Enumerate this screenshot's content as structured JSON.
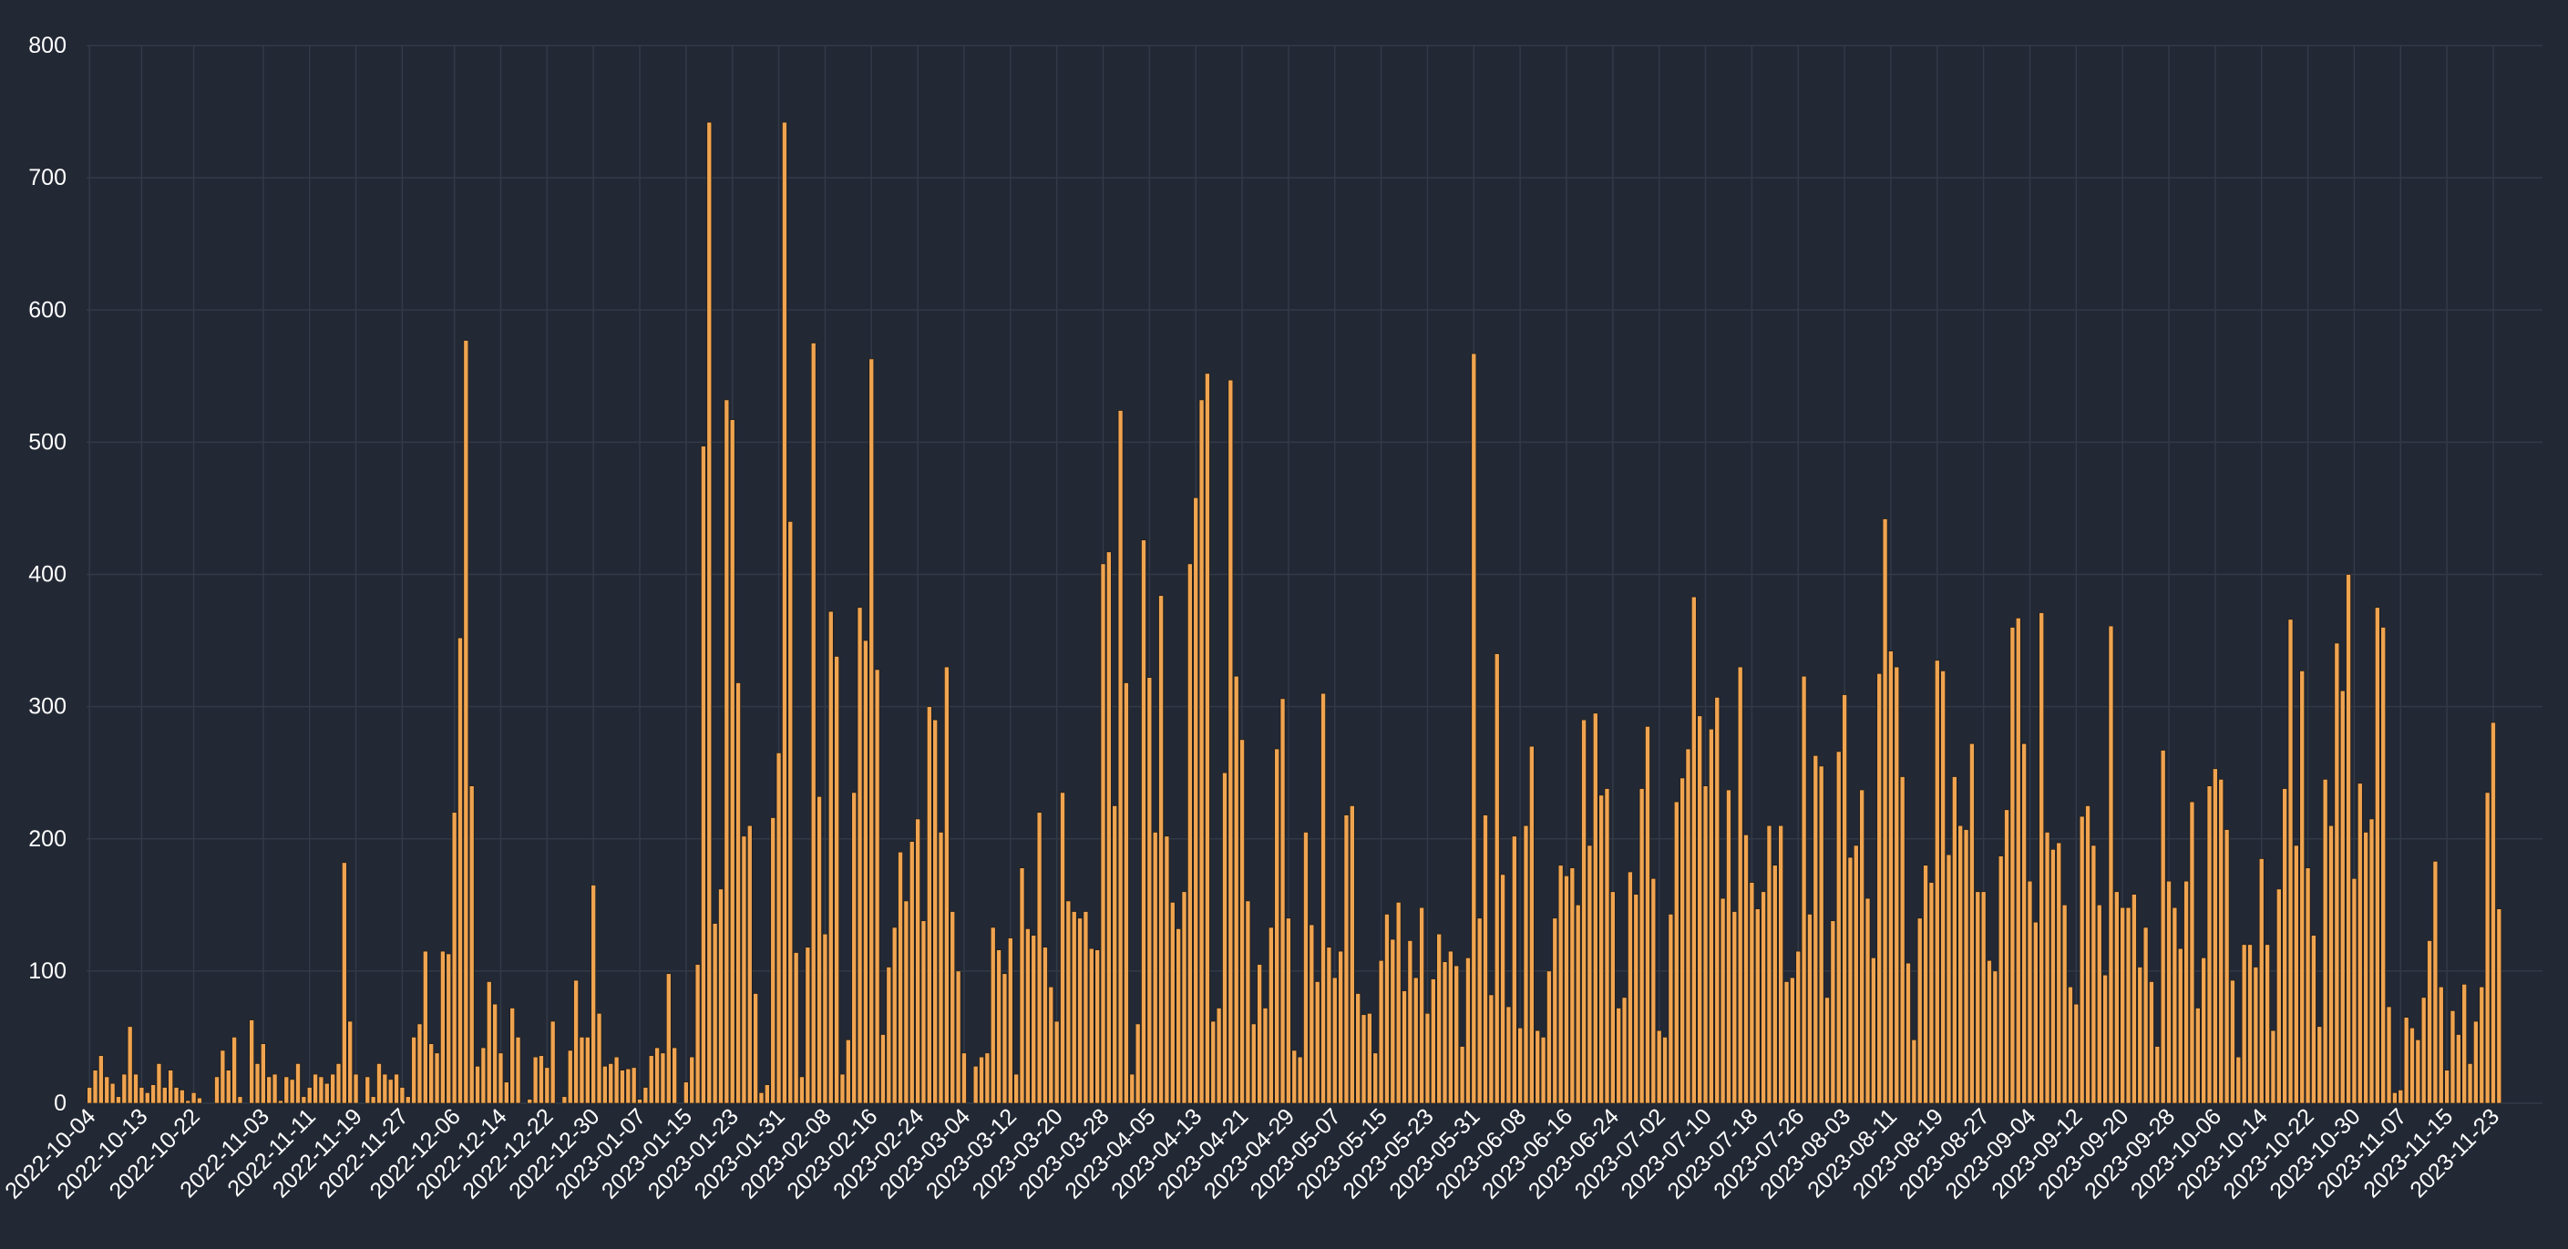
{
  "chart_data": {
    "type": "bar",
    "title": "",
    "xlabel": "",
    "ylabel": "",
    "ylim": [
      0,
      800
    ],
    "yticks": [
      0,
      100,
      200,
      300,
      400,
      500,
      600,
      700,
      800
    ],
    "grid": true,
    "start_date": "2022-10-04",
    "end_date": "2023-12-01",
    "xtick_labels": [
      "2022-10-04",
      "2022-10-13",
      "2022-10-22",
      "2022-11-03",
      "2022-11-11",
      "2022-11-19",
      "2022-11-27",
      "2022-12-06",
      "2022-12-14",
      "2022-12-22",
      "2022-12-30",
      "2023-01-07",
      "2023-01-15",
      "2023-01-23",
      "2023-01-31",
      "2023-02-08",
      "2023-02-16",
      "2023-02-24",
      "2023-03-04",
      "2023-03-12",
      "2023-03-20",
      "2023-03-28",
      "2023-04-05",
      "2023-04-13",
      "2023-04-21",
      "2023-04-29",
      "2023-05-07",
      "2023-05-15",
      "2023-05-23",
      "2023-05-31",
      "2023-06-08",
      "2023-06-16",
      "2023-06-24",
      "2023-07-02",
      "2023-07-10",
      "2023-07-18",
      "2023-07-26",
      "2023-08-03",
      "2023-08-11",
      "2023-08-19",
      "2023-08-27",
      "2023-09-04",
      "2023-09-12",
      "2023-09-20",
      "2023-09-28",
      "2023-10-06",
      "2023-10-14",
      "2023-10-22",
      "2023-10-30",
      "2023-11-07",
      "2023-11-15",
      "2023-11-23"
    ],
    "values": [
      12,
      25,
      36,
      20,
      15,
      5,
      22,
      58,
      22,
      12,
      8,
      14,
      30,
      12,
      25,
      12,
      10,
      2,
      8,
      4,
      0,
      0,
      20,
      40,
      25,
      50,
      5,
      0,
      63,
      30,
      45,
      20,
      22,
      2,
      20,
      18,
      30,
      5,
      12,
      22,
      20,
      15,
      22,
      30,
      182,
      62,
      22,
      0,
      20,
      5,
      30,
      22,
      18,
      22,
      12,
      5,
      50,
      60,
      115,
      45,
      38,
      115,
      113,
      220,
      352,
      577,
      240,
      28,
      42,
      92,
      75,
      38,
      16,
      72,
      50,
      0,
      3,
      35,
      36,
      27,
      62,
      0,
      5,
      40,
      93,
      50,
      50,
      165,
      68,
      28,
      30,
      35,
      25,
      26,
      27,
      3,
      12,
      36,
      42,
      38,
      98,
      42,
      0,
      16,
      35,
      105,
      497,
      742,
      136,
      162,
      532,
      517,
      318,
      202,
      210,
      83,
      8,
      14,
      216,
      265,
      742,
      440,
      114,
      20,
      118,
      575,
      232,
      128,
      372,
      338,
      22,
      48,
      235,
      375,
      350,
      563,
      328,
      52,
      103,
      133,
      190,
      153,
      198,
      215,
      138,
      300,
      290,
      205,
      330,
      145,
      100,
      38,
      0,
      28,
      35,
      38,
      133,
      116,
      98,
      125,
      22,
      178,
      132,
      127,
      220,
      118,
      88,
      62,
      235,
      153,
      145,
      140,
      145,
      117,
      116,
      408,
      417,
      225,
      524,
      318,
      22,
      60,
      426,
      322,
      205,
      384,
      202,
      152,
      132,
      160,
      408,
      458,
      532,
      552,
      62,
      72,
      250,
      547,
      323,
      275,
      153,
      60,
      105,
      72,
      133,
      268,
      306,
      140,
      40,
      35,
      205,
      135,
      92,
      310,
      118,
      95,
      115,
      218,
      225,
      83,
      67,
      68,
      38,
      108,
      143,
      124,
      152,
      85,
      123,
      95,
      148,
      68,
      94,
      128,
      107,
      115,
      104,
      43,
      110,
      567,
      140,
      218,
      82,
      340,
      173,
      73,
      202,
      57,
      210,
      270,
      55,
      50,
      100,
      140,
      180,
      172,
      178,
      150,
      290,
      195,
      295,
      233,
      238,
      160,
      72,
      80,
      175,
      158,
      238,
      285,
      170,
      55,
      50,
      143,
      228,
      246,
      268,
      383,
      293,
      240,
      283,
      307,
      155,
      237,
      145,
      330,
      203,
      167,
      147,
      160,
      210,
      180,
      210,
      92,
      95,
      115,
      323,
      143,
      263,
      255,
      80,
      138,
      266,
      309,
      186,
      195,
      237,
      155,
      110,
      325,
      442,
      342,
      330,
      247,
      106,
      48,
      140,
      180,
      167,
      335,
      327,
      188,
      247,
      210,
      207,
      272,
      160,
      160,
      108,
      100,
      187,
      222,
      360,
      367,
      272,
      168,
      137,
      371,
      205,
      192,
      197,
      150,
      88,
      75,
      217,
      225,
      195,
      150,
      97,
      361,
      160,
      148,
      148,
      158,
      103,
      133,
      92,
      43,
      267,
      168,
      148,
      117,
      168,
      228,
      72,
      110,
      240,
      253,
      245,
      207,
      93,
      35,
      120,
      120,
      103,
      185,
      120,
      55,
      162,
      238,
      366,
      195,
      327,
      178,
      127,
      58,
      245,
      210,
      348,
      312,
      400,
      170,
      242,
      205,
      215,
      375,
      360,
      73,
      8,
      10,
      65,
      57,
      48,
      80,
      123,
      183,
      88,
      25,
      70,
      52,
      90,
      30,
      62,
      88,
      235,
      288,
      147
    ],
    "bar_color": "#f0a450",
    "bar_stroke": "#1e1810",
    "grid_color": "#323a48",
    "text_color": "#ffffff",
    "background": "#222834"
  }
}
